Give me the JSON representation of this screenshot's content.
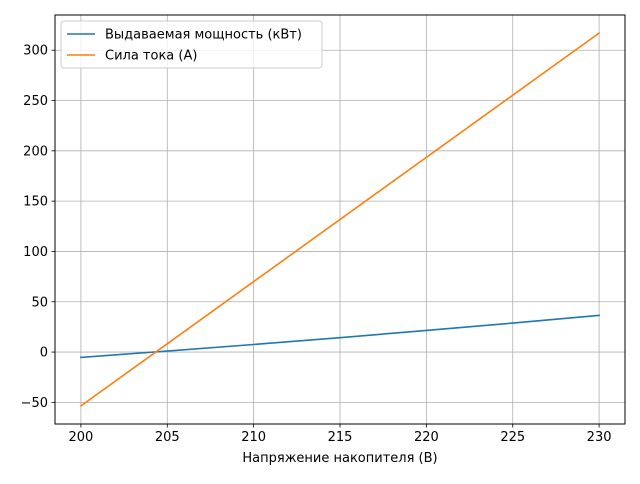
{
  "chart_data": {
    "type": "line",
    "title": "",
    "xlabel": "Напряжение накопителя (В)",
    "ylabel": "",
    "xlim": [
      198.5,
      231.5
    ],
    "ylim": [
      -71.5,
      335
    ],
    "xticks": [
      200,
      205,
      210,
      215,
      220,
      225,
      230
    ],
    "yticks": [
      -50,
      0,
      50,
      100,
      150,
      200,
      250,
      300
    ],
    "grid": true,
    "legend_position": "top-left",
    "series": [
      {
        "name": "Выдаваемая мощность (кВт)",
        "color": "#1f77b4",
        "x": [
          200,
          205,
          210,
          215,
          220,
          225,
          230
        ],
        "y": [
          -5.3,
          1.0,
          7.5,
          14.3,
          21.5,
          28.8,
          36.5
        ]
      },
      {
        "name": "Сила тока (А)",
        "color": "#ff7f0e",
        "x": [
          200,
          230
        ],
        "y": [
          -53.5,
          317
        ]
      }
    ]
  }
}
